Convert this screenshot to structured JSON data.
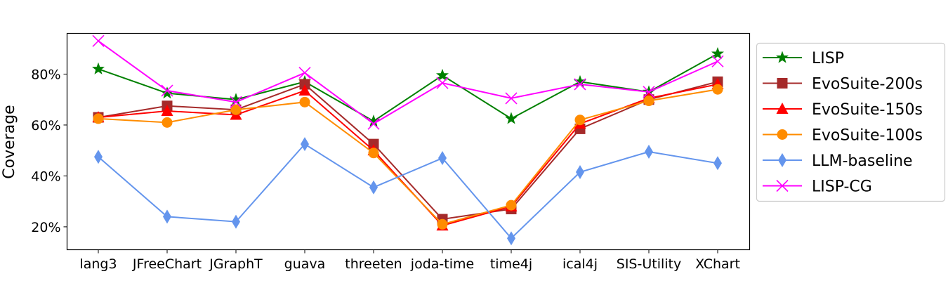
{
  "chart_data": {
    "type": "line",
    "ylabel": "Coverage",
    "xlabel": "",
    "ylim": [
      11,
      96
    ],
    "yticks": [
      20,
      40,
      60,
      80
    ],
    "ytick_labels": [
      "20%",
      "40%",
      "60%",
      "80%"
    ],
    "grid": false,
    "legend_position": "right-outside",
    "categories": [
      "lang3",
      "JFreeChart",
      "JGraphT",
      "guava",
      "threeten",
      "joda-time",
      "time4j",
      "ical4j",
      "SIS-Utility",
      "XChart"
    ],
    "series": [
      {
        "name": "LISP",
        "color": "#008000",
        "marker": "star",
        "values": [
          82,
          72.5,
          70,
          77,
          61.5,
          79.5,
          62.5,
          77,
          73,
          88
        ]
      },
      {
        "name": "EvoSuite-200s",
        "color": "#a52a2a",
        "marker": "square",
        "values": [
          63,
          67.5,
          66,
          76,
          52.5,
          23,
          27,
          58.5,
          70,
          77
        ]
      },
      {
        "name": "EvoSuite-150s",
        "color": "#ff0000",
        "marker": "triangle",
        "values": [
          63,
          65.5,
          64,
          73.5,
          50,
          20.5,
          28,
          60.5,
          70.5,
          76
        ]
      },
      {
        "name": "EvoSuite-100s",
        "color": "#ff8c00",
        "marker": "circle",
        "values": [
          62.5,
          61,
          66,
          69,
          49,
          21,
          28.5,
          62,
          69.5,
          74
        ]
      },
      {
        "name": "LLM-baseline",
        "color": "#6495ed",
        "marker": "thin_diamond",
        "values": [
          47.5,
          24,
          22,
          52.5,
          35.5,
          47,
          15.5,
          41.5,
          49.5,
          45
        ]
      },
      {
        "name": "LISP-CG",
        "color": "#ff00ff",
        "marker": "x",
        "values": [
          93,
          73.5,
          69,
          80.5,
          60.5,
          76.5,
          70.5,
          76,
          73,
          85
        ]
      }
    ]
  }
}
